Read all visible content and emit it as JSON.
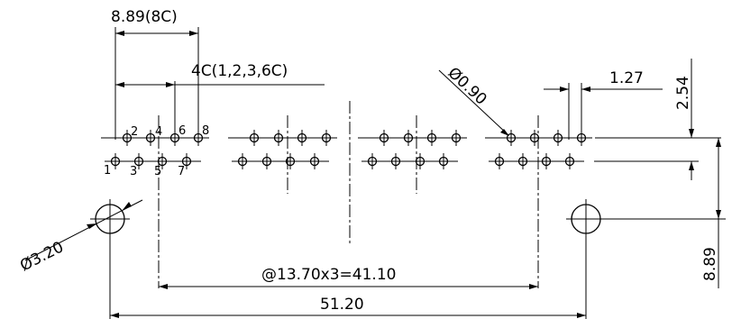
{
  "dimensions": {
    "pitch_8c": "8.89(8C)",
    "pitch_4c": "4C(1,2,3,6C)",
    "pin_hole_dia": "Ø0.90",
    "pin_pitch": "1.27",
    "row_offset_v": "2.54",
    "mount_hole_dia": "Ø3.20",
    "port_pitch": "@13.70x3=41.10",
    "mount_span": "51.20",
    "mount_offset_v": "8.89"
  },
  "pin_labels": [
    "1",
    "2",
    "3",
    "4",
    "5",
    "6",
    "7",
    "8"
  ]
}
